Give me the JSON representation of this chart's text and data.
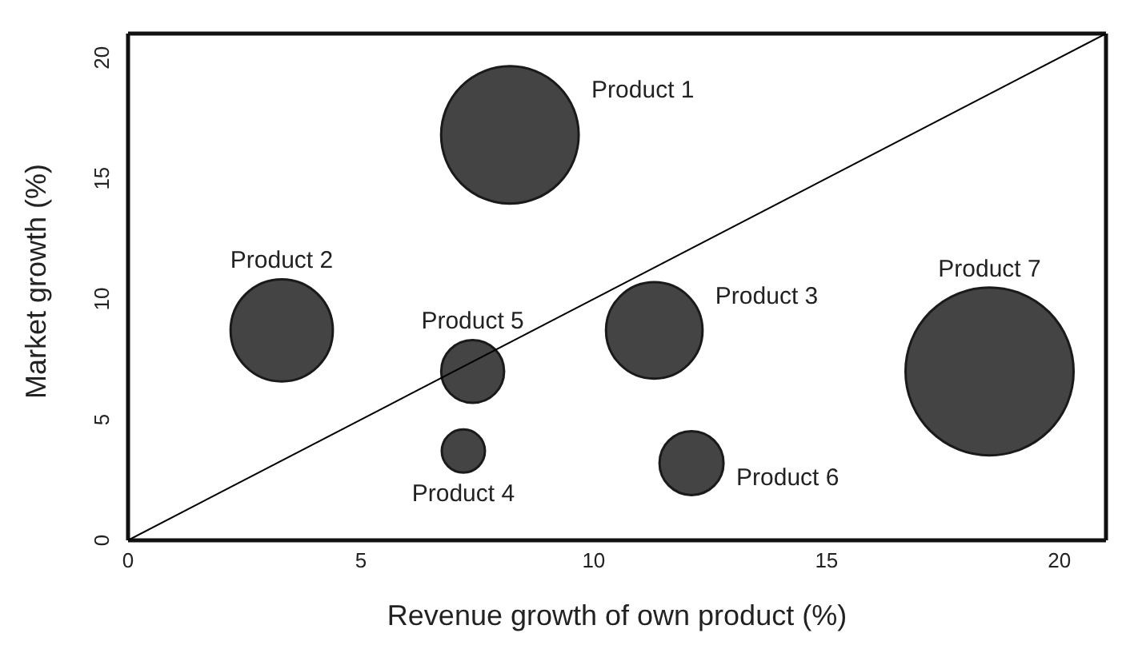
{
  "chart_data": {
    "type": "bubble",
    "xlabel": "Revenue growth of own product (%)",
    "ylabel": "Market growth (%)",
    "annotations": [
      "Product 1",
      "Product 2",
      "Product 3",
      "Product 4",
      "Product 5",
      "Product 6",
      "Product 7"
    ],
    "series": [
      {
        "type": "bubble",
        "color": "#444444",
        "x": [
          8.2,
          3.3,
          11.3,
          7.2,
          7.4,
          12.1,
          18.5
        ],
        "values": [
          16.8,
          8.7,
          8.7,
          3.7,
          7.0,
          3.2,
          7.0
        ],
        "sizes": [
          0.67,
          0.37,
          0.33,
          0.066,
          0.14,
          0.145,
          1
        ]
      },
      {
        "type": "line",
        "marker": "none",
        "color": "#000000",
        "x": [
          0,
          21
        ],
        "values": [
          0,
          21
        ]
      }
    ],
    "xlim": [
      0,
      21
    ],
    "ylim": [
      0,
      21
    ],
    "xticks": [
      0,
      5,
      10,
      15,
      20
    ],
    "yticks": [
      0,
      5,
      10,
      15,
      20
    ],
    "grid": false,
    "legend": false,
    "marker": "circle"
  }
}
